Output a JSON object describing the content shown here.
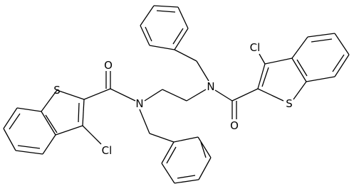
{
  "atoms": [
    {
      "label": "S"
    },
    {
      "label": "O"
    },
    {
      "label": "Cl"
    },
    {
      "label": "N"
    },
    {
      "label": "N"
    },
    {
      "label": "Cl"
    },
    {
      "label": "O"
    },
    {
      "label": "S"
    }
  ]
}
